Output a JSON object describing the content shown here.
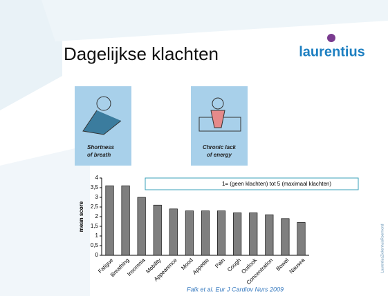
{
  "chart_data": {
    "type": "bar",
    "title": "Dagelijkse klachten",
    "y_label": "mean score",
    "annotation": "1= (geen klachten) tot 5 (maximaal klachten)",
    "source": "Falk et al. Eur J Cardiov Nurs 2009",
    "categories": [
      "Fatigue",
      "Breathing",
      "Insomnia",
      "Mobility",
      "Appearence",
      "Mood",
      "Appetite",
      "Pain",
      "Cough",
      "Outlook",
      "Concentration",
      "Bowel",
      "Nausea"
    ],
    "values": [
      3.6,
      3.6,
      3.0,
      2.6,
      2.4,
      2.3,
      2.3,
      2.3,
      2.2,
      2.2,
      2.1,
      1.9,
      1.7
    ],
    "color": "#7f7f7f",
    "ylim": [
      0,
      4
    ],
    "yticks": [
      0,
      {
        "value": 0.5,
        "label": "0,5"
      },
      1,
      {
        "value": 1.5,
        "label": "1,5"
      },
      2,
      {
        "value": 2.5,
        "label": "2,5"
      },
      3,
      {
        "value": 3.5,
        "label": "3,5"
      },
      4
    ]
  },
  "slide": {
    "logo": "laurentius",
    "image_captions": [
      [
        "Shortness",
        "of breath"
      ],
      [
        "Chronic lack",
        "of energy"
      ]
    ],
    "side_text": "LaurentiusZiekenhuisRoermond"
  }
}
